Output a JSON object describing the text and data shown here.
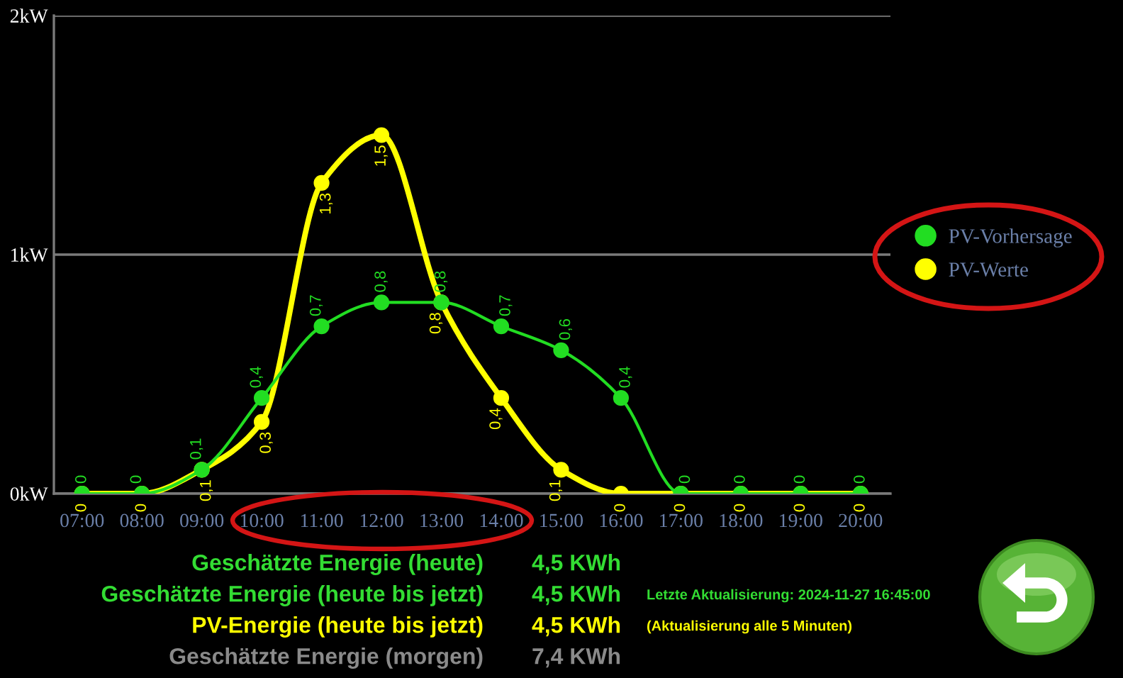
{
  "chart_data": {
    "type": "line",
    "categories": [
      "07:00",
      "08:00",
      "09:00",
      "10:00",
      "11:00",
      "12:00",
      "13:00",
      "14:00",
      "15:00",
      "16:00",
      "17:00",
      "18:00",
      "19:00",
      "20:00"
    ],
    "series": [
      {
        "name": "PV-Vorhersage",
        "color": "#22dd22",
        "values": [
          0,
          0,
          0.1,
          0.4,
          0.7,
          0.8,
          0.8,
          0.7,
          0.6,
          0.4,
          0,
          0,
          0,
          0
        ],
        "value_labels": [
          "0",
          "0",
          "0,1",
          "0,4",
          "0,7",
          "0,8",
          "0,8",
          "0,7",
          "0,6",
          "0,4",
          "0",
          "0",
          "0",
          "0"
        ]
      },
      {
        "name": "PV-Werte",
        "color": "#ffff00",
        "values": [
          0,
          0,
          0.1,
          0.3,
          1.3,
          1.5,
          0.8,
          0.4,
          0.1,
          0,
          0,
          0,
          0,
          0
        ],
        "value_labels": [
          "0",
          "0",
          "0,1",
          "0,3",
          "1,3",
          "1,5",
          "0,8",
          "0,4",
          "0,1",
          "0",
          "0",
          "0",
          "0",
          "0"
        ]
      }
    ],
    "ylim": [
      0,
      2
    ],
    "yticks": [
      {
        "value": 0,
        "label": "0kW"
      },
      {
        "value": 1,
        "label": "1kW"
      },
      {
        "value": 2,
        "label": "2kW"
      }
    ],
    "grid": "y",
    "legend": "right",
    "marker": "circle",
    "line_style": "solid",
    "annotations": [
      "Geschätzte Energie (heute)",
      "4,5 KWh",
      "Geschätzte Energie (heute bis jetzt)",
      "4,5 KWh",
      "Letzte Aktualisierung: 2024-11-27 16:45:00",
      "PV-Energie (heute bis jetzt)",
      "4,5 KWh",
      "(Aktualisierung alle 5 Minuten)",
      "Geschätzte Energie (morgen)",
      "7,4 KWh"
    ]
  }
}
